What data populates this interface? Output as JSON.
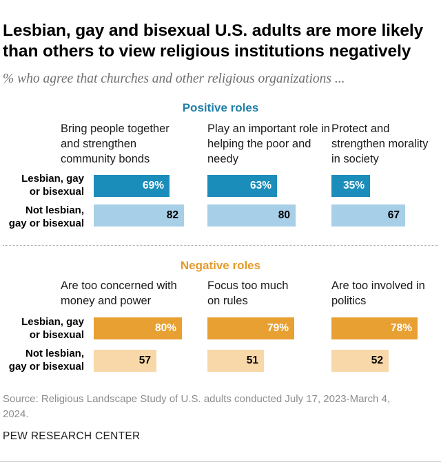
{
  "title": "Lesbian, gay and bisexual U.S. adults are more likely than others to view religious institutions negatively",
  "subtitle": "% who agree that churches and other religious organizations ...",
  "source": "Source: Religious Landscape Study of U.S. adults conducted July 17, 2023-March 4, 2024.",
  "organization": "PEW RESEARCH CENTER",
  "row_labels": {
    "lgb_line1": "Lesbian, gay",
    "lgb_line2": "or bisexual",
    "not_line1": "Not lesbian,",
    "not_line2": "gay or bisexual"
  },
  "colors": {
    "positive_title": "#1f7fa8",
    "positive_lgb": "#1b8dbb",
    "positive_not": "#a7cfe7",
    "negative_title": "#e69a2a",
    "negative_lgb": "#e8a032",
    "negative_not": "#f8d8a8"
  },
  "chart_data": [
    {
      "type": "bar",
      "title": "Positive roles",
      "categories": [
        "Bring people together and strengthen community bonds",
        "Play an important role in helping the poor and needy",
        "Protect and strengthen morality in society"
      ],
      "series": [
        {
          "name": "Lesbian, gay or bisexual",
          "values": [
            69,
            63,
            35
          ],
          "labels": [
            "69%",
            "63%",
            "35%"
          ]
        },
        {
          "name": "Not lesbian, gay or bisexual",
          "values": [
            82,
            80,
            67
          ],
          "labels": [
            "82",
            "80",
            "67"
          ]
        }
      ]
    },
    {
      "type": "bar",
      "title": "Negative roles",
      "categories": [
        "Are too concerned with money and power",
        "Focus too much on rules",
        "Are too involved in politics"
      ],
      "series": [
        {
          "name": "Lesbian, gay or bisexual",
          "values": [
            80,
            79,
            78
          ],
          "labels": [
            "80%",
            "79%",
            "78%"
          ]
        },
        {
          "name": "Not lesbian, gay or bisexual",
          "values": [
            57,
            51,
            52
          ],
          "labels": [
            "57",
            "51",
            "52"
          ]
        }
      ]
    }
  ]
}
